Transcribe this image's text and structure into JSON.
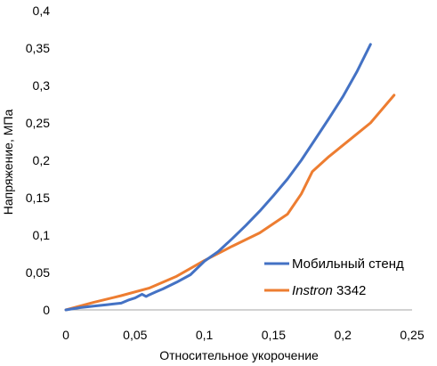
{
  "chart_data": {
    "type": "line",
    "title": "",
    "xlabel": "Относительное укорочение",
    "ylabel": "Напряжение, МПа",
    "xlim": [
      0,
      0.25
    ],
    "ylim": [
      0,
      0.4
    ],
    "x_ticks": [
      {
        "value": 0,
        "label": "0"
      },
      {
        "value": 0.05,
        "label": "0,05"
      },
      {
        "value": 0.1,
        "label": "0,1"
      },
      {
        "value": 0.15,
        "label": "0,15"
      },
      {
        "value": 0.2,
        "label": "0,2"
      },
      {
        "value": 0.25,
        "label": "0,25"
      }
    ],
    "y_ticks": [
      {
        "value": 0,
        "label": "0"
      },
      {
        "value": 0.05,
        "label": "0,05"
      },
      {
        "value": 0.1,
        "label": "0,1"
      },
      {
        "value": 0.15,
        "label": "0,15"
      },
      {
        "value": 0.2,
        "label": "0,2"
      },
      {
        "value": 0.25,
        "label": "0,25"
      },
      {
        "value": 0.3,
        "label": "0,3"
      },
      {
        "value": 0.35,
        "label": "0,35"
      },
      {
        "value": 0.4,
        "label": "0,4"
      }
    ],
    "grid": false,
    "legend_position": "bottom-right",
    "series": [
      {
        "name": "Мобильный стенд",
        "name_italic": "",
        "name_rest": "Мобильный стенд",
        "color": "#4472C4",
        "x": [
          0,
          0.01,
          0.02,
          0.03,
          0.04,
          0.045,
          0.05,
          0.055,
          0.058,
          0.06,
          0.065,
          0.07,
          0.08,
          0.09,
          0.1,
          0.11,
          0.12,
          0.13,
          0.14,
          0.15,
          0.16,
          0.17,
          0.18,
          0.19,
          0.2,
          0.21,
          0.22
        ],
        "y": [
          0,
          0.003,
          0.005,
          0.007,
          0.009,
          0.013,
          0.016,
          0.021,
          0.018,
          0.02,
          0.024,
          0.028,
          0.037,
          0.047,
          0.065,
          0.078,
          0.095,
          0.113,
          0.132,
          0.153,
          0.175,
          0.2,
          0.228,
          0.256,
          0.285,
          0.318,
          0.355
        ]
      },
      {
        "name": "Instron 3342",
        "name_italic": "Instron",
        "name_rest": " 3342",
        "color": "#ED7D31",
        "x": [
          0,
          0.02,
          0.04,
          0.06,
          0.08,
          0.1,
          0.12,
          0.14,
          0.16,
          0.17,
          0.178,
          0.19,
          0.2,
          0.21,
          0.22,
          0.237
        ],
        "y": [
          0,
          0.01,
          0.019,
          0.029,
          0.045,
          0.066,
          0.085,
          0.103,
          0.128,
          0.155,
          0.185,
          0.205,
          0.22,
          0.235,
          0.25,
          0.287
        ]
      }
    ]
  }
}
